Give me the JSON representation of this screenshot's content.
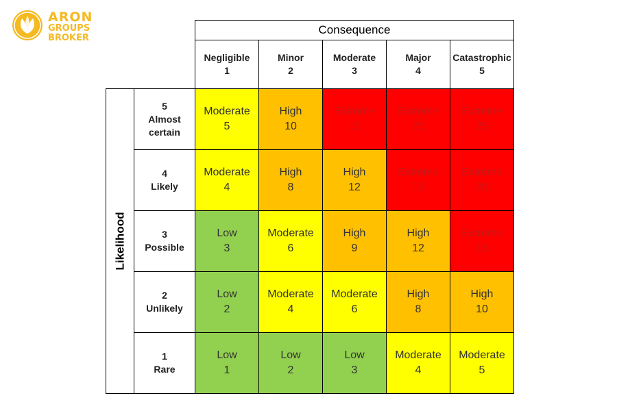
{
  "logo": {
    "line1": "ARON",
    "line2": "GROUPS",
    "line3": "BROKER",
    "brand_color": "#f5b922"
  },
  "consequence_title": "Consequence",
  "likelihood_title": "Likelihood",
  "colors": {
    "low": "#92d050",
    "moderate": "#ffff00",
    "high": "#ffc000",
    "extreme": "#ff0000"
  },
  "columns": [
    {
      "label": "Negligible",
      "num": "1"
    },
    {
      "label": "Minor",
      "num": "2"
    },
    {
      "label": "Moderate",
      "num": "3"
    },
    {
      "label": "Major",
      "num": "4"
    },
    {
      "label": "Catastrophic",
      "num": "5"
    }
  ],
  "rows": [
    {
      "num": "5",
      "label": "Almost certain",
      "cells": [
        {
          "level": "Moderate",
          "score": "5"
        },
        {
          "level": "High",
          "score": "10"
        },
        {
          "level": "Extreme",
          "score": "15"
        },
        {
          "level": "Extreme",
          "score": "20"
        },
        {
          "level": "Extreme",
          "score": "25"
        }
      ]
    },
    {
      "num": "4",
      "label": "Likely",
      "cells": [
        {
          "level": "Moderate",
          "score": "4"
        },
        {
          "level": "High",
          "score": "8"
        },
        {
          "level": "High",
          "score": "12"
        },
        {
          "level": "Extreme",
          "score": "16"
        },
        {
          "level": "Extreme",
          "score": "20"
        }
      ]
    },
    {
      "num": "3",
      "label": "Possible",
      "cells": [
        {
          "level": "Low",
          "score": "3"
        },
        {
          "level": "Moderate",
          "score": "6"
        },
        {
          "level": "High",
          "score": "9"
        },
        {
          "level": "High",
          "score": "12"
        },
        {
          "level": "Extreme",
          "score": "15"
        }
      ]
    },
    {
      "num": "2",
      "label": "Unlikely",
      "cells": [
        {
          "level": "Low",
          "score": "2"
        },
        {
          "level": "Moderate",
          "score": "4"
        },
        {
          "level": "Moderate",
          "score": "6"
        },
        {
          "level": "High",
          "score": "8"
        },
        {
          "level": "High",
          "score": "10"
        }
      ]
    },
    {
      "num": "1",
      "label": "Rare",
      "cells": [
        {
          "level": "Low",
          "score": "1"
        },
        {
          "level": "Low",
          "score": "2"
        },
        {
          "level": "Low",
          "score": "3"
        },
        {
          "level": "Moderate",
          "score": "4"
        },
        {
          "level": "Moderate",
          "score": "5"
        }
      ]
    }
  ]
}
